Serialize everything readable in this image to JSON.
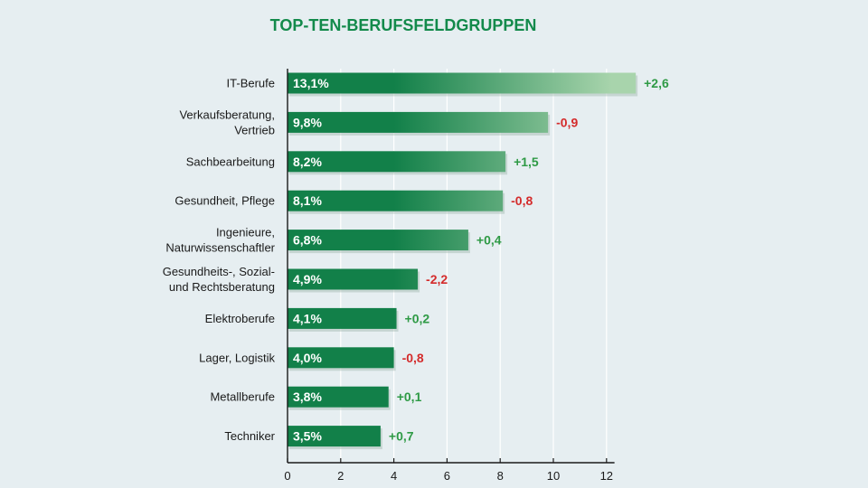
{
  "colors": {
    "background": "#e6eef1",
    "title": "#138a4b",
    "bar_solid": "#128049",
    "positive": "#2e9a45",
    "negative": "#d42b2b",
    "axis": "#1a1a1a",
    "grid": "#ffffff"
  },
  "chart_data": {
    "type": "bar",
    "orientation": "horizontal",
    "title": "TOP-TEN-BERUFSFELDGRUPPEN",
    "categories": [
      [
        "IT-Berufe"
      ],
      [
        "Verkaufsberatung,",
        "Vertrieb"
      ],
      [
        "Sachbearbeitung"
      ],
      [
        "Gesundheit, Pflege"
      ],
      [
        "Ingenieure,",
        "Naturwissenschaftler"
      ],
      [
        "Gesundheits-, Sozial-",
        "und Rechtsberatung"
      ],
      [
        "Elektroberufe"
      ],
      [
        "Lager, Logistik"
      ],
      [
        "Metallberufe"
      ],
      [
        "Techniker"
      ]
    ],
    "values": [
      13.1,
      9.8,
      8.2,
      8.1,
      6.8,
      4.9,
      4.1,
      4.0,
      3.8,
      3.5
    ],
    "value_labels": [
      "13,1%",
      "9,8%",
      "8,2%",
      "8,1%",
      "6,8%",
      "4,9%",
      "4,1%",
      "4,0%",
      "3,8%",
      "3,5%"
    ],
    "change_labels": [
      "+2,6",
      "-0,9",
      "+1,5",
      "-0,8",
      "+0,4",
      "-2,2",
      "+0,2",
      "-0,8",
      "+0,1",
      "+0,7"
    ],
    "change_positive": [
      true,
      false,
      true,
      false,
      true,
      false,
      true,
      false,
      true,
      true
    ],
    "x_ticks": [
      0,
      2,
      4,
      6,
      8,
      10,
      12
    ],
    "xlim": [
      0,
      12.3
    ],
    "grid": true
  }
}
